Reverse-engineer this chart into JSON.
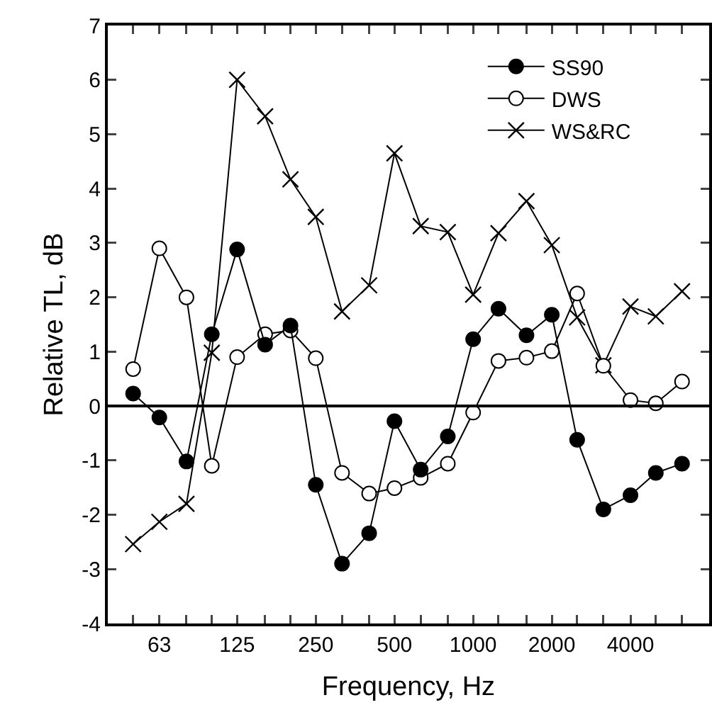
{
  "chart_data": {
    "type": "line",
    "xlabel": "Frequency, Hz",
    "ylabel": "Relative TL, dB",
    "log": "x",
    "x": [
      50,
      63,
      80,
      100,
      125,
      160,
      200,
      250,
      315,
      400,
      500,
      630,
      800,
      1000,
      1250,
      1600,
      2000,
      2500,
      3150,
      4000,
      5000,
      6300
    ],
    "xlim": [
      40,
      8000
    ],
    "xticks": [
      {
        "value": 50,
        "label": null
      },
      63,
      {
        "value": 80,
        "label": null
      },
      {
        "value": 100,
        "label": null
      },
      125,
      {
        "value": 160,
        "label": null
      },
      {
        "value": 200,
        "label": null
      },
      250,
      {
        "value": 315,
        "label": null
      },
      {
        "value": 400,
        "label": null
      },
      500,
      {
        "value": 630,
        "label": null
      },
      {
        "value": 800,
        "label": null
      },
      1000,
      {
        "value": 1250,
        "label": null
      },
      {
        "value": 1600,
        "label": null
      },
      2000,
      {
        "value": 2500,
        "label": null
      },
      {
        "value": 3150,
        "label": null
      },
      4000,
      {
        "value": 5000,
        "label": null
      },
      {
        "value": 6300,
        "label": null
      }
    ],
    "ylim": [
      -4,
      7
    ],
    "yticks": [
      -4,
      -3,
      -2,
      -1,
      0,
      1,
      2,
      3,
      4,
      5,
      6,
      7
    ],
    "grid": false,
    "legend": "top right",
    "line_style": "solid",
    "ref_lines": [
      {
        "axis": "y",
        "value": 0,
        "color": "#000000"
      }
    ],
    "series": [
      {
        "name": "SS90",
        "color": "#000000",
        "marker": "circle",
        "values": [
          0.23,
          -0.21,
          -1.02,
          1.32,
          2.88,
          1.13,
          1.48,
          -1.45,
          -2.9,
          -2.34,
          -0.28,
          -1.17,
          -0.56,
          1.23,
          1.79,
          1.3,
          1.68,
          -0.62,
          -1.9,
          -1.64,
          -1.23,
          -1.06
        ]
      },
      {
        "name": "DWS",
        "color": "#000000",
        "marker": "circle-open",
        "values": [
          0.68,
          2.9,
          2.0,
          -1.1,
          0.9,
          1.32,
          1.39,
          0.88,
          -1.23,
          -1.61,
          -1.51,
          -1.32,
          -1.06,
          -0.12,
          0.83,
          0.89,
          1.01,
          2.07,
          0.74,
          0.11,
          0.05,
          0.45
        ]
      },
      {
        "name": "WS&RC",
        "color": "#000000",
        "marker": "cross",
        "values": [
          -2.54,
          -2.13,
          -1.8,
          0.98,
          6.0,
          5.33,
          4.17,
          3.48,
          1.74,
          2.22,
          4.65,
          3.31,
          3.2,
          2.05,
          3.18,
          3.77,
          2.96,
          1.63,
          0.75,
          1.83,
          1.65,
          2.11
        ]
      }
    ]
  }
}
